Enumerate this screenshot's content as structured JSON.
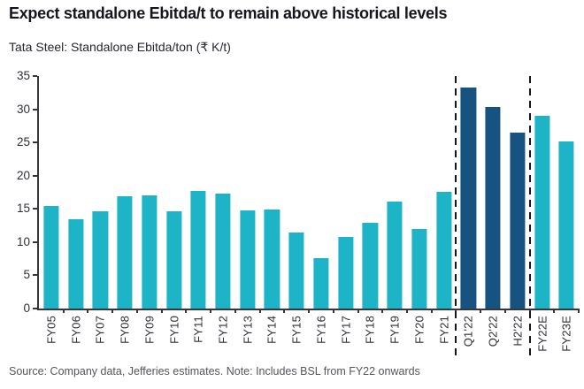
{
  "header": {
    "title": "Expect standalone Ebitda/t to remain above historical levels",
    "subtitle": "Tata Steel: Standalone Ebitda/ton (₹ K/t)"
  },
  "footer": {
    "source": "Source: Company data, Jefferies estimates. Note: Includes BSL from FY22 onwards"
  },
  "colors": {
    "bar_actual": "#1db4c8",
    "bar_recent_quarters": "#175380",
    "axis": "#36363e",
    "separator": "#15151e",
    "title_text": "#15151e",
    "source_text": "#55555c"
  },
  "chart_data": {
    "type": "bar",
    "title": "Expect standalone Ebitda/t to remain above historical levels",
    "subtitle": "Tata Steel: Standalone Ebitda/ton (₹ K/t)",
    "xlabel": "",
    "ylabel": "Ebitda/ton (₹ K/t)",
    "ylim": [
      0,
      35
    ],
    "yticks": [
      0,
      5,
      10,
      15,
      20,
      25,
      30,
      35
    ],
    "grid": false,
    "legend": false,
    "x_label_rotation": 90,
    "categories": [
      "FY05",
      "FY06",
      "FY07",
      "FY08",
      "FY09",
      "FY10",
      "FY11",
      "FY12",
      "FY13",
      "FY14",
      "FY15",
      "FY16",
      "FY17",
      "FY18",
      "FY19",
      "FY20",
      "FY21",
      "Q1'22",
      "Q2'22",
      "H2'22",
      "FY22E",
      "FY23E"
    ],
    "values": [
      15.4,
      13.4,
      14.6,
      16.9,
      17.0,
      14.7,
      17.7,
      17.3,
      14.8,
      14.9,
      11.4,
      7.6,
      10.8,
      12.9,
      16.1,
      12.0,
      17.6,
      33.3,
      30.3,
      26.5,
      29.0,
      25.1
    ],
    "bar_color_keys": [
      "bar_actual",
      "bar_actual",
      "bar_actual",
      "bar_actual",
      "bar_actual",
      "bar_actual",
      "bar_actual",
      "bar_actual",
      "bar_actual",
      "bar_actual",
      "bar_actual",
      "bar_actual",
      "bar_actual",
      "bar_actual",
      "bar_actual",
      "bar_actual",
      "bar_actual",
      "bar_recent_quarters",
      "bar_recent_quarters",
      "bar_recent_quarters",
      "bar_actual",
      "bar_actual"
    ],
    "separators_after_categories": [
      "FY21",
      "H2'22"
    ]
  }
}
